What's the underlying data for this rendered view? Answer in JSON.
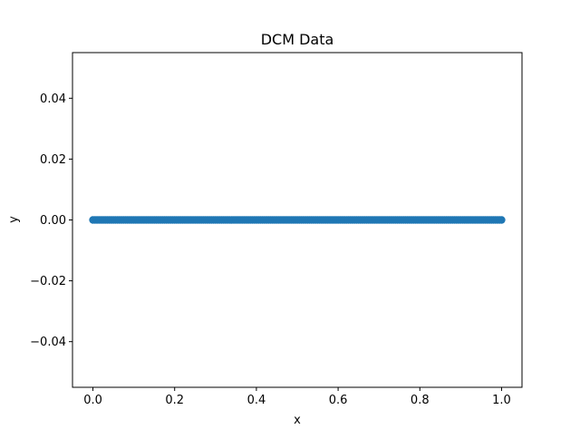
{
  "chart_data": {
    "type": "scatter",
    "title": "DCM Data",
    "xlabel": "x",
    "ylabel": "y",
    "xlim": [
      -0.05,
      1.05
    ],
    "ylim": [
      -0.055,
      0.055
    ],
    "x_ticks": [
      0.0,
      0.2,
      0.4,
      0.6,
      0.8,
      1.0
    ],
    "x_tick_labels": [
      "0.0",
      "0.2",
      "0.4",
      "0.6",
      "0.8",
      "1.0"
    ],
    "y_ticks": [
      -0.04,
      -0.02,
      0.0,
      0.02,
      0.04
    ],
    "y_tick_labels": [
      "−0.04",
      "−0.02",
      "0.00",
      "0.02",
      "0.04"
    ],
    "grid": false,
    "legend": "none",
    "series": [
      {
        "color": "#1f77b4",
        "x_start": 0.0,
        "x_end": 1.0,
        "x_step": 0.005,
        "y_value": 0.0
      }
    ]
  }
}
